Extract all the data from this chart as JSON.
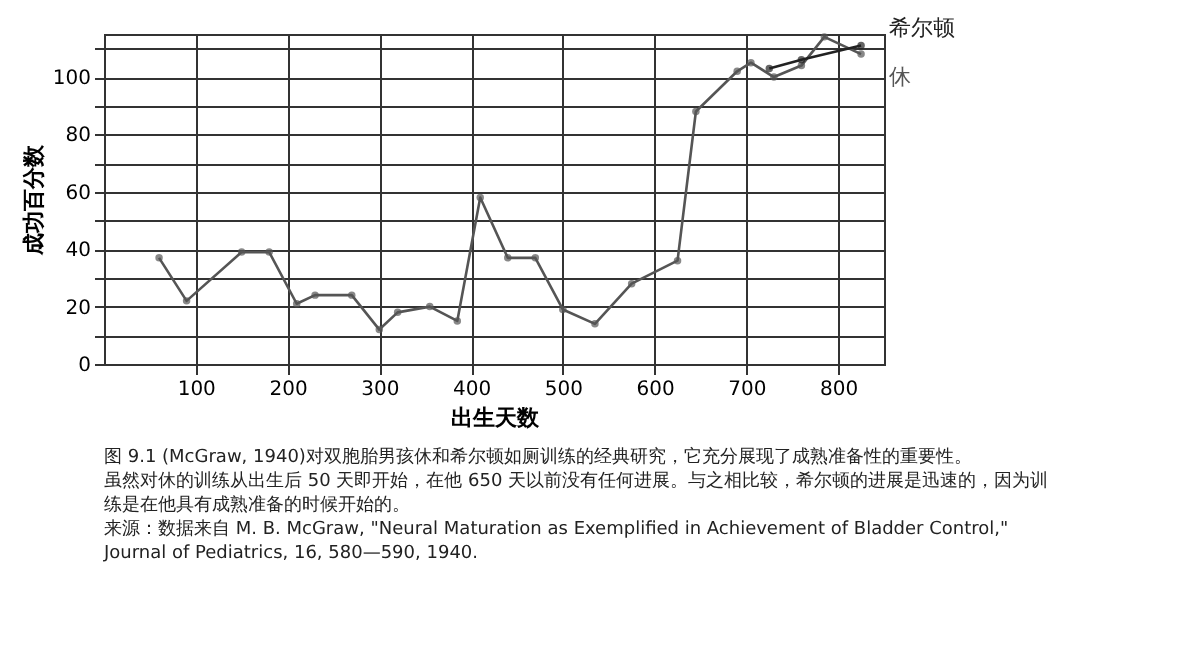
{
  "chart_data": {
    "type": "line",
    "xlabel": "出生天数",
    "ylabel": "成功百分数",
    "xlim": [
      0,
      850
    ],
    "xticks": [
      100,
      200,
      300,
      400,
      500,
      600,
      700,
      800
    ],
    "ylim": [
      0,
      115
    ],
    "yticks": [
      0,
      {
        "value": 10,
        "label": null
      },
      20,
      {
        "value": 30,
        "label": null
      },
      40,
      {
        "value": 50,
        "label": null
      },
      60,
      {
        "value": 70,
        "label": null
      },
      80,
      {
        "value": 90,
        "label": null
      },
      100,
      {
        "value": 110,
        "label": null
      }
    ],
    "grid": true,
    "marker": "circle",
    "line_style": "solid",
    "series": [
      {
        "name": "休",
        "color": "#555555",
        "x": [
          60,
          90,
          150,
          180,
          210,
          230,
          270,
          300,
          320,
          355,
          385,
          410,
          440,
          470,
          500,
          535,
          575,
          625,
          645,
          690,
          705,
          730,
          760,
          785,
          825
        ],
        "values": [
          37,
          22,
          39,
          39,
          21,
          24,
          24,
          12,
          18,
          20,
          15,
          58,
          37,
          37,
          19,
          14,
          28,
          36,
          88,
          102,
          105,
          100,
          104,
          114,
          108
        ]
      },
      {
        "name": "希尔顿",
        "color": "#222222",
        "x": [
          725,
          760,
          825
        ],
        "values": [
          103,
          106,
          111
        ]
      }
    ],
    "annotations": [
      "图 9.1 (McGraw, 1940)对双胞胎男孩休和希尔顿如厕训练的经典研究，它充分展现了成熟准备性的重要性。虽然对休的训练从出生后 50 天即开始，在他 650 天以前没有任何进展。与之相比较，希尔顿的进展是迅速的，因为训练是在他具有成熟准备的时候开始的。",
      "来源：数据来自 M. B. McGraw, \"Neural Maturation as Exemplified in Achievement of Bladder Control,\" Journal of Pediatrics, 16, 580—590, 1940."
    ]
  }
}
